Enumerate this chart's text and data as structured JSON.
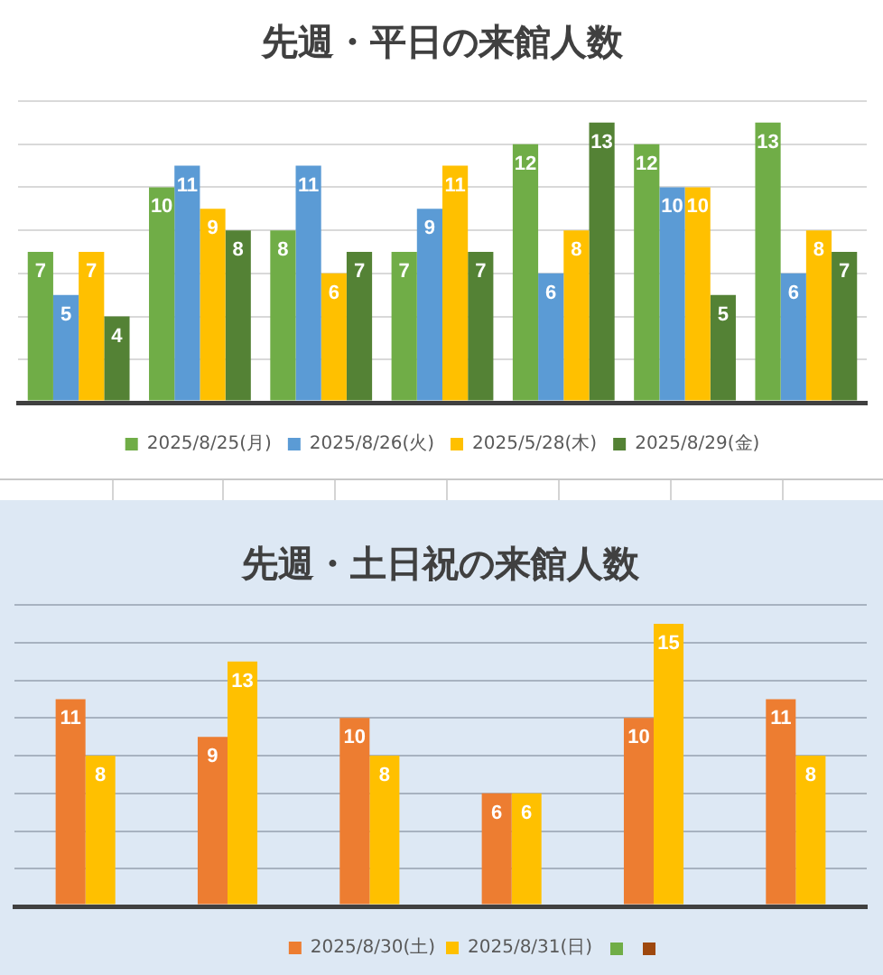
{
  "chart_data": [
    {
      "type": "bar",
      "title": "先週・平日の来館人数",
      "categories": [
        null,
        null,
        null,
        null,
        null,
        null,
        null
      ],
      "series": [
        {
          "name": "2025/8/25(月)",
          "color": "#70ad47",
          "values": [
            7,
            10,
            8,
            7,
            12,
            12,
            13
          ]
        },
        {
          "name": "2025/8/26(火)",
          "color": "#5b9bd5",
          "values": [
            5,
            11,
            11,
            9,
            6,
            10,
            6
          ]
        },
        {
          "name": "2025/5/28(木)",
          "color": "#ffc000",
          "values": [
            7,
            9,
            6,
            11,
            8,
            10,
            8
          ]
        },
        {
          "name": "2025/8/29(金)",
          "color": "#548235",
          "values": [
            4,
            8,
            7,
            7,
            13,
            5,
            7
          ]
        }
      ],
      "ylim": [
        0,
        14
      ],
      "yticks": [
        {
          "value": 0,
          "label": null
        },
        {
          "value": 2,
          "label": null
        },
        {
          "value": 4,
          "label": null
        },
        {
          "value": 6,
          "label": null
        },
        {
          "value": 8,
          "label": null
        },
        {
          "value": 10,
          "label": null
        },
        {
          "value": 12,
          "label": null
        },
        {
          "value": 14,
          "label": null
        }
      ],
      "grid": "y",
      "legend": "bottom",
      "tick_labels": false,
      "data_labels": true
    },
    {
      "type": "bar",
      "title": "先週・土日祝の来館人数",
      "categories": [
        null,
        null,
        null,
        null,
        null,
        null
      ],
      "series": [
        {
          "name": "2025/8/30(土)",
          "color": "#ed7d31",
          "values": [
            11,
            9,
            10,
            6,
            10,
            11
          ]
        },
        {
          "name": "2025/8/31(日)",
          "color": "#ffc000",
          "values": [
            8,
            13,
            8,
            6,
            15,
            8
          ]
        }
      ],
      "ylim": [
        0,
        16
      ],
      "yticks": [
        {
          "value": 0,
          "label": null
        },
        {
          "value": 2,
          "label": null
        },
        {
          "value": 4,
          "label": null
        },
        {
          "value": 6,
          "label": null
        },
        {
          "value": 8,
          "label": null
        },
        {
          "value": 10,
          "label": null
        },
        {
          "value": 12,
          "label": null
        },
        {
          "value": 14,
          "label": null
        },
        {
          "value": 16,
          "label": null
        }
      ],
      "grid": "y",
      "legend": "bottom",
      "tick_labels": false,
      "data_labels": true
    }
  ]
}
